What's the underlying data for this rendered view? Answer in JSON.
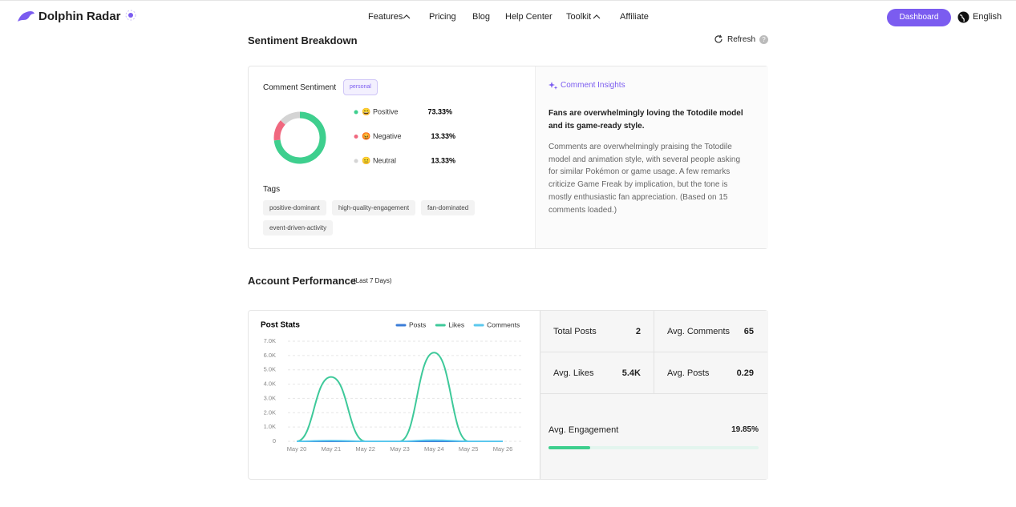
{
  "nav": {
    "logo": "Dolphin Radar",
    "links": [
      "Features",
      "Pricing",
      "Blog",
      "Help Center",
      "Toolkit",
      "Affiliate"
    ],
    "button": "Dashboard",
    "language": "English"
  },
  "sentiment": {
    "title": "Sentiment Breakdown",
    "refresh": "Refresh",
    "card_title": "Comment Sentiment",
    "badge": "personal",
    "chart_data": {
      "type": "donut",
      "categories": [
        "Positive",
        "Negative",
        "Neutral"
      ],
      "emoji": [
        "😄",
        "😡",
        "😐"
      ],
      "values": [
        73.33,
        13.33,
        13.33
      ],
      "value_labels": [
        "73.33%",
        "13.33%",
        "13.33%"
      ],
      "colors": [
        "#3ecf8e",
        "#f0687f",
        "#d4d4d4"
      ]
    },
    "tags_title": "Tags",
    "tags": [
      "positive-dominant",
      "high-quality-engagement",
      "fan-dominated",
      "event-driven-activity"
    ],
    "insights_title": "Comment Insights",
    "insights_headline": "Fans are overwhelmingly loving the Totodile model and its game-ready style.",
    "insights_body": "Comments are overwhelmingly praising the Totodile model and animation style, with several people asking for similar Pokémon or game usage. A few remarks criticize Game Freak by implication, but the tone is mostly enthusiastic fan appreciation. (Based on 15 comments loaded.)"
  },
  "performance": {
    "title": "Account Performance",
    "subtitle": "(Last 7 Days)",
    "chart_data": {
      "type": "line",
      "title": "Post Stats",
      "categories": [
        "May 20",
        "May 21",
        "May 22",
        "May 23",
        "May 24",
        "May 25",
        "May 26"
      ],
      "series": [
        {
          "name": "Posts",
          "color": "#3b7dd8",
          "values": [
            0,
            1,
            0,
            0,
            1,
            0,
            0
          ]
        },
        {
          "name": "Likes",
          "color": "#3ec99a",
          "values": [
            0,
            4500,
            0,
            0,
            6200,
            0,
            0
          ]
        },
        {
          "name": "Comments",
          "color": "#5bc8ee",
          "values": [
            0,
            50,
            0,
            0,
            80,
            0,
            0
          ]
        }
      ],
      "ylim": [
        0,
        7000
      ],
      "yticks": [
        0,
        {
          "value": 1000,
          "label": "1.0K"
        },
        {
          "value": 2000,
          "label": "2.0K"
        },
        {
          "value": 3000,
          "label": "3.0K"
        },
        {
          "value": 4000,
          "label": "4.0K"
        },
        {
          "value": 5000,
          "label": "5.0K"
        },
        {
          "value": 6000,
          "label": "6.0K"
        },
        {
          "value": 7000,
          "label": "7.0K"
        }
      ],
      "grid": true,
      "legend": "top-right"
    },
    "stats": [
      [
        "Total Posts",
        "2"
      ],
      [
        "Avg. Comments",
        "65"
      ],
      [
        "Avg. Likes",
        "5.4K"
      ],
      [
        "Avg. Posts",
        "0.29"
      ]
    ],
    "engagement": {
      "label": "Avg. Engagement",
      "value": 19.85,
      "value_label": "19.85%",
      "color": "#3ecf8e"
    }
  }
}
